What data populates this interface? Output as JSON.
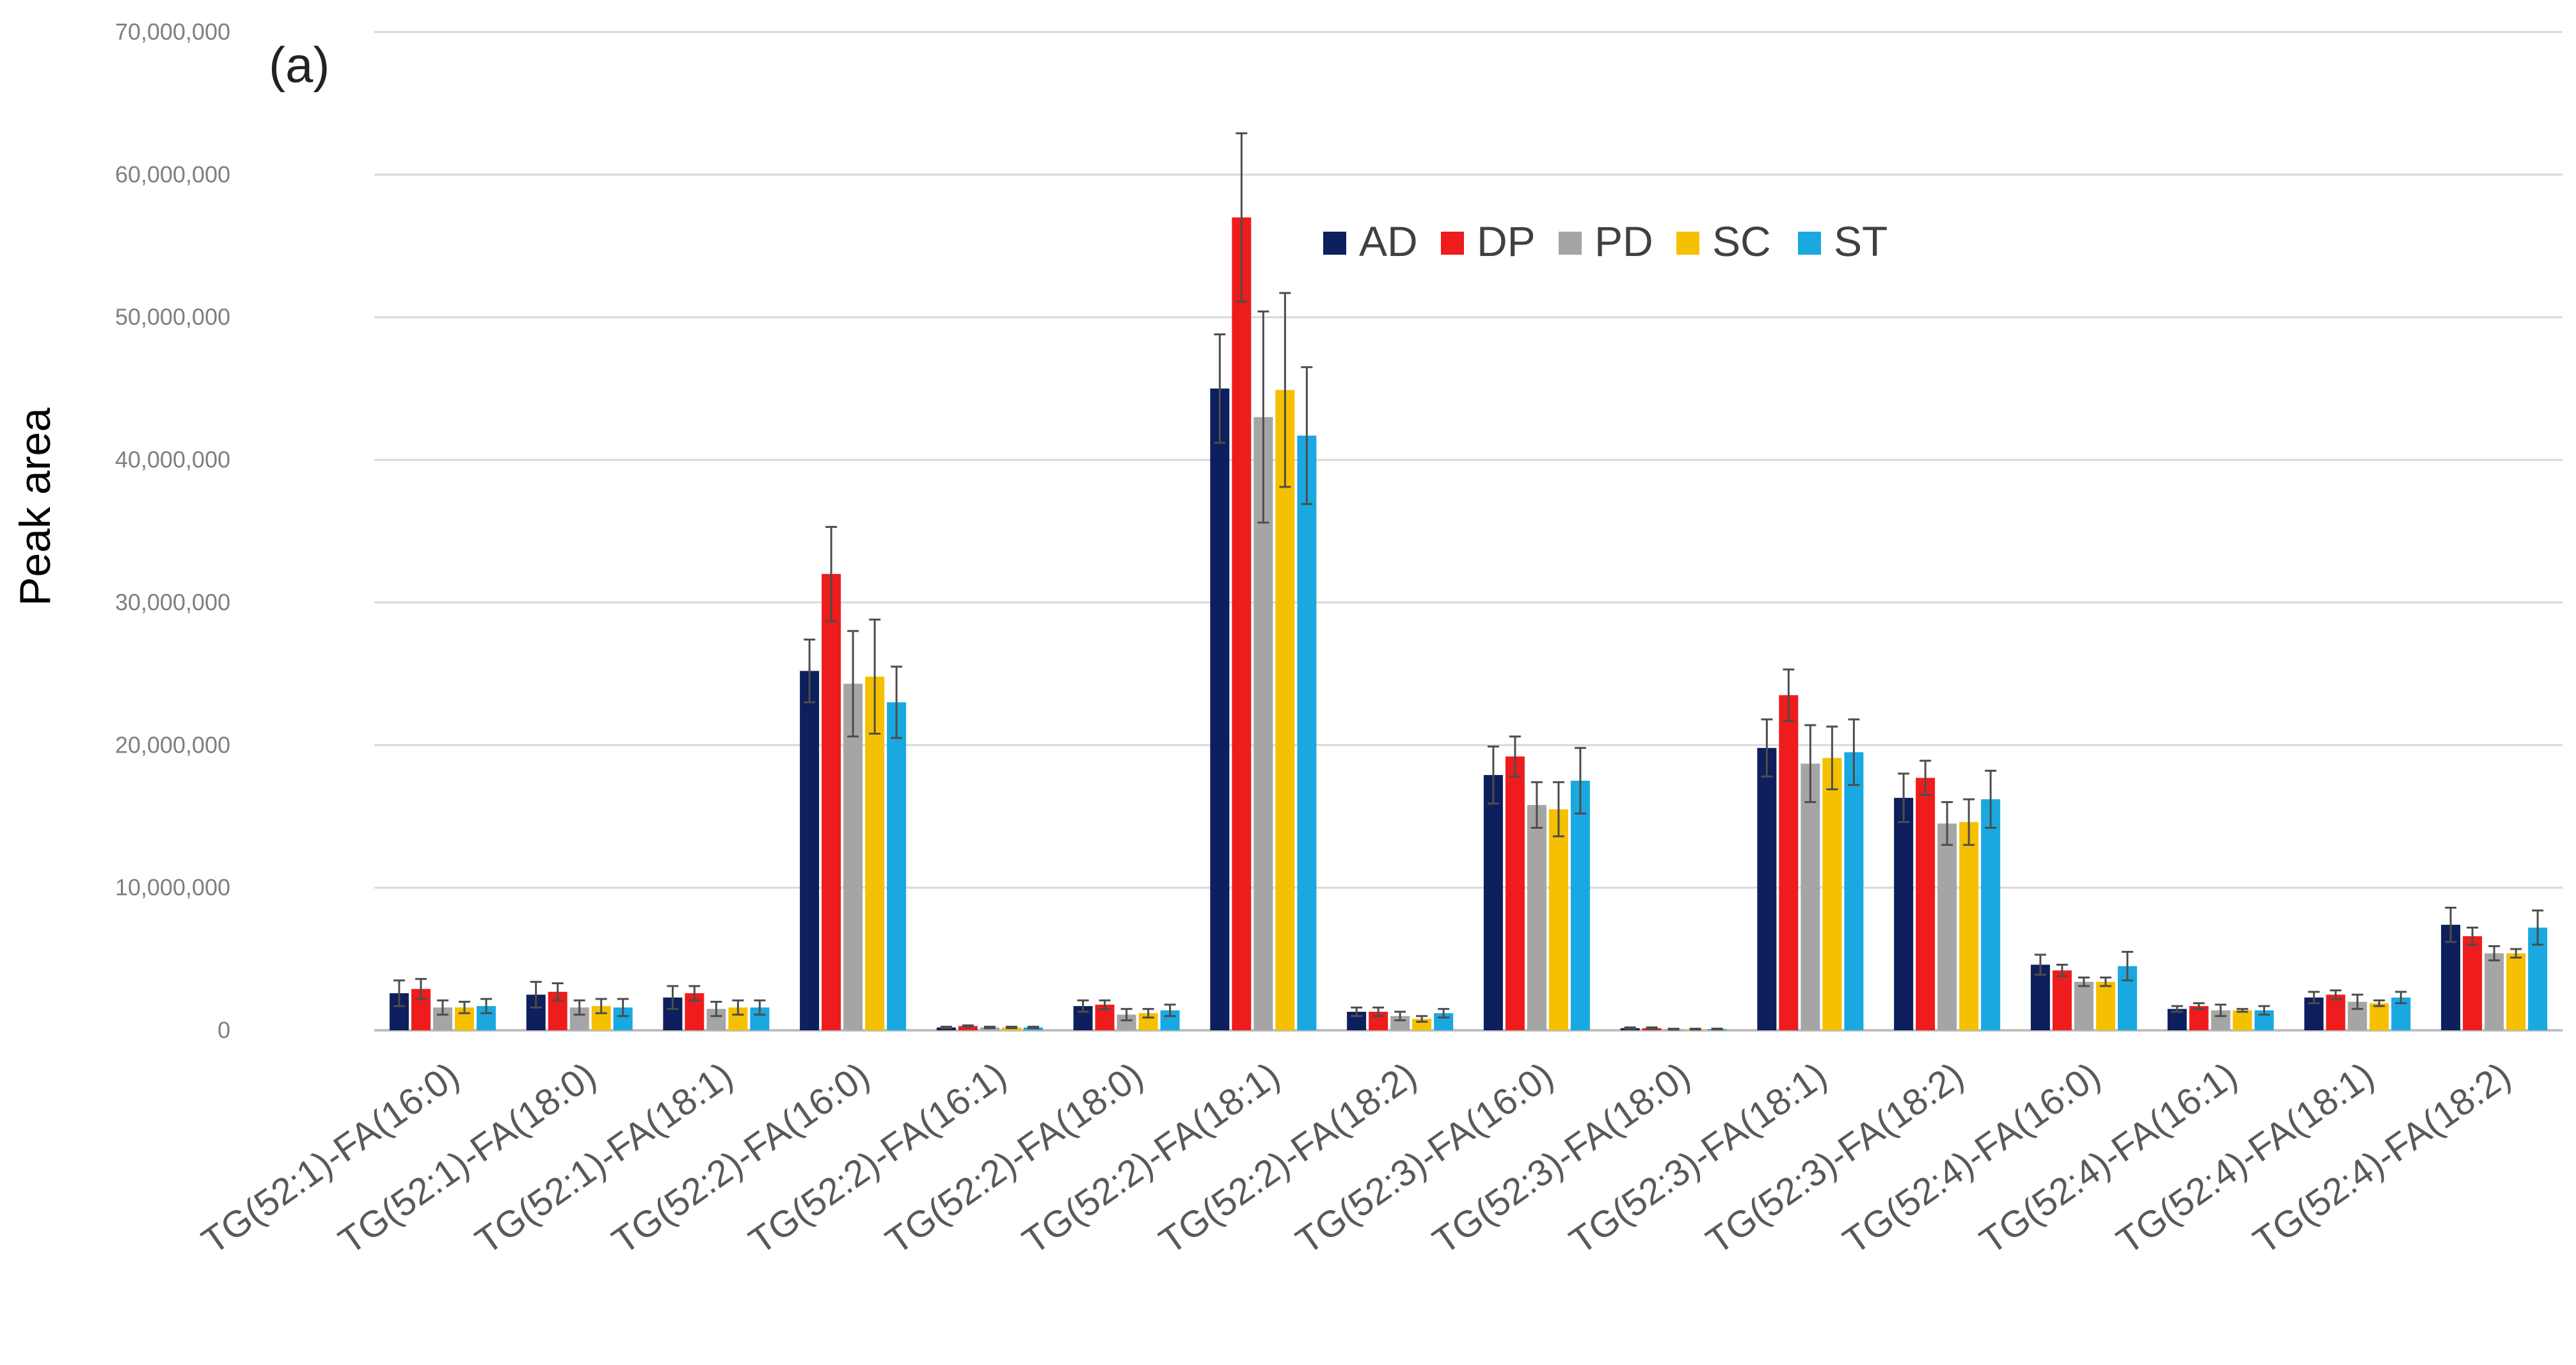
{
  "chart_data": {
    "type": "bar",
    "panel_label": "(a)",
    "ylabel": "Peak area",
    "xlabel": "",
    "ylim": [
      0,
      70000000
    ],
    "yticks": [
      0,
      10000000,
      20000000,
      30000000,
      40000000,
      50000000,
      60000000,
      70000000
    ],
    "ytick_labels": [
      "0",
      "10,000,000",
      "20,000,000",
      "30,000,000",
      "40,000,000",
      "50,000,000",
      "60,000,000",
      "70,000,000"
    ],
    "grid": true,
    "legend_position": "top-center",
    "categories": [
      "TG(52:1)-FA(16:0)",
      "TG(52:1)-FA(18:0)",
      "TG(52:1)-FA(18:1)",
      "TG(52:2)-FA(16:0)",
      "TG(52:2)-FA(16:1)",
      "TG(52:2)-FA(18:0)",
      "TG(52:2)-FA(18:1)",
      "TG(52:2)-FA(18:2)",
      "TG(52:3)-FA(16:0)",
      "TG(52:3)-FA(18:0)",
      "TG(52:3)-FA(18:1)",
      "TG(52:3)-FA(18:2)",
      "TG(52:4)-FA(16:0)",
      "TG(52:4)-FA(16:1)",
      "TG(52:4)-FA(18:1)",
      "TG(52:4)-FA(18:2)"
    ],
    "series": [
      {
        "name": "AD",
        "color": "#0d1f5c",
        "values": [
          2600000,
          2500000,
          2300000,
          25200000,
          200000,
          1700000,
          45000000,
          1300000,
          17900000,
          150000,
          19800000,
          16300000,
          4600000,
          1500000,
          2300000,
          7400000
        ],
        "errors": [
          900000,
          900000,
          800000,
          2200000,
          50000,
          400000,
          3800000,
          300000,
          2000000,
          50000,
          2000000,
          1700000,
          700000,
          200000,
          400000,
          1200000
        ]
      },
      {
        "name": "DP",
        "color": "#ee1c1c",
        "values": [
          2900000,
          2700000,
          2600000,
          32000000,
          300000,
          1800000,
          57000000,
          1300000,
          19200000,
          150000,
          23500000,
          17700000,
          4200000,
          1700000,
          2500000,
          6600000
        ],
        "errors": [
          700000,
          600000,
          500000,
          3300000,
          50000,
          300000,
          5900000,
          300000,
          1400000,
          50000,
          1800000,
          1200000,
          400000,
          200000,
          300000,
          600000
        ]
      },
      {
        "name": "PD",
        "color": "#a5a5a5",
        "values": [
          1600000,
          1600000,
          1500000,
          24300000,
          200000,
          1100000,
          43000000,
          1000000,
          15800000,
          80000,
          18700000,
          14500000,
          3400000,
          1400000,
          2000000,
          5400000
        ],
        "errors": [
          500000,
          500000,
          500000,
          3700000,
          50000,
          400000,
          7400000,
          300000,
          1600000,
          30000,
          2700000,
          1500000,
          300000,
          400000,
          500000,
          500000
        ]
      },
      {
        "name": "SC",
        "color": "#f5c000",
        "values": [
          1600000,
          1700000,
          1600000,
          24800000,
          200000,
          1200000,
          44900000,
          800000,
          15500000,
          80000,
          19100000,
          14600000,
          3400000,
          1400000,
          1900000,
          5400000
        ],
        "errors": [
          400000,
          500000,
          500000,
          4000000,
          50000,
          300000,
          6800000,
          200000,
          1900000,
          30000,
          2200000,
          1600000,
          300000,
          100000,
          200000,
          300000
        ]
      },
      {
        "name": "ST",
        "color": "#1aa8e0",
        "values": [
          1700000,
          1600000,
          1600000,
          23000000,
          200000,
          1400000,
          41700000,
          1200000,
          17500000,
          90000,
          19500000,
          16200000,
          4500000,
          1400000,
          2300000,
          7200000
        ],
        "errors": [
          500000,
          600000,
          500000,
          2500000,
          50000,
          400000,
          4800000,
          300000,
          2300000,
          30000,
          2300000,
          2000000,
          1000000,
          300000,
          400000,
          1200000
        ]
      }
    ]
  }
}
